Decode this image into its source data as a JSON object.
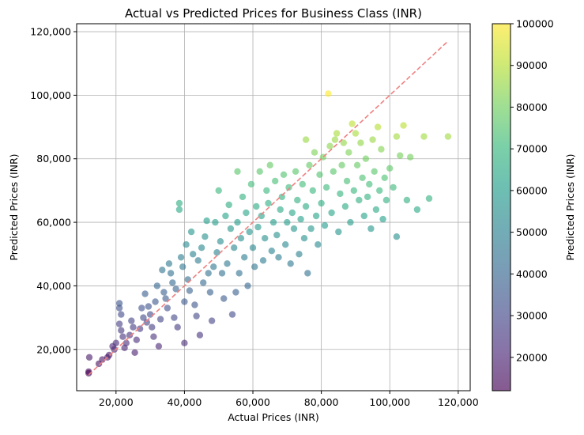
{
  "chart_data": {
    "type": "scatter",
    "title": "Actual vs Predicted Prices for Business Class (INR)",
    "xlabel": "Actual Prices (INR)",
    "ylabel": "Predicted Prices (INR)",
    "xlim": [
      8500,
      123500
    ],
    "ylim": [
      7000,
      122500
    ],
    "grid": true,
    "x_ticks": [
      20000,
      40000,
      60000,
      80000,
      100000,
      120000
    ],
    "x_tick_labels": [
      "20,000",
      "40,000",
      "60,000",
      "80,000",
      "100,000",
      "120,000"
    ],
    "y_ticks": [
      20000,
      40000,
      60000,
      80000,
      100000,
      120000
    ],
    "y_tick_labels": [
      "20,000",
      "40,000",
      "60,000",
      "80,000",
      "100,000",
      "120,000"
    ],
    "reference_line": {
      "from": [
        12000,
        12000
      ],
      "to": [
        117000,
        117000
      ],
      "color": "#f08080",
      "style": "dashed"
    },
    "colorbar": {
      "label": "Predicted Prices (INR)",
      "range": [
        12000,
        100000
      ],
      "ticks": [
        20000,
        30000,
        40000,
        50000,
        60000,
        70000,
        80000,
        90000,
        100000
      ],
      "tick_labels": [
        "20000",
        "30000",
        "40000",
        "50000",
        "60000",
        "70000",
        "80000",
        "90000",
        "100000"
      ],
      "colormap": "viridis",
      "colormap_stops": [
        "#440154",
        "#482878",
        "#3e4a89",
        "#31688e",
        "#26828e",
        "#1f9e89",
        "#35b779",
        "#6ece58",
        "#b5de2b",
        "#fde725"
      ]
    },
    "marker_alpha": 0.6,
    "series": [
      {
        "points": [
          [
            12000,
            12500
          ],
          [
            12000,
            13000
          ],
          [
            12200,
            17500
          ],
          [
            15000,
            15500
          ],
          [
            16000,
            16800
          ],
          [
            17500,
            17500
          ],
          [
            18000,
            18200
          ],
          [
            19000,
            21000
          ],
          [
            19500,
            20000
          ],
          [
            20000,
            22000
          ],
          [
            21000,
            34500
          ],
          [
            21000,
            33000
          ],
          [
            21500,
            31000
          ],
          [
            21000,
            28000
          ],
          [
            21500,
            26000
          ],
          [
            22000,
            24000
          ],
          [
            22500,
            20500
          ],
          [
            23000,
            22000
          ],
          [
            24000,
            24500
          ],
          [
            24500,
            29000
          ],
          [
            25000,
            27000
          ],
          [
            25500,
            19000
          ],
          [
            26000,
            23000
          ],
          [
            27000,
            26500
          ],
          [
            27500,
            33000
          ],
          [
            28000,
            30000
          ],
          [
            28500,
            37500
          ],
          [
            29000,
            28500
          ],
          [
            29500,
            33500
          ],
          [
            30000,
            31000
          ],
          [
            30500,
            27000
          ],
          [
            31000,
            24000
          ],
          [
            31500,
            35000
          ],
          [
            32000,
            40000
          ],
          [
            32500,
            21000
          ],
          [
            33000,
            29500
          ],
          [
            33500,
            45000
          ],
          [
            34000,
            38000
          ],
          [
            34500,
            36000
          ],
          [
            35000,
            33000
          ],
          [
            35500,
            47000
          ],
          [
            36000,
            44000
          ],
          [
            36500,
            41000
          ],
          [
            37000,
            30000
          ],
          [
            37500,
            39000
          ],
          [
            38000,
            27000
          ],
          [
            38500,
            64000
          ],
          [
            38500,
            66000
          ],
          [
            39000,
            49000
          ],
          [
            39500,
            46000
          ],
          [
            40000,
            22000
          ],
          [
            40000,
            35000
          ],
          [
            40500,
            53000
          ],
          [
            41000,
            42000
          ],
          [
            41500,
            38500
          ],
          [
            42000,
            57000
          ],
          [
            42500,
            50000
          ],
          [
            43000,
            34000
          ],
          [
            43500,
            30500
          ],
          [
            44000,
            48000
          ],
          [
            44500,
            24500
          ],
          [
            45000,
            52000
          ],
          [
            45500,
            41000
          ],
          [
            46000,
            55500
          ],
          [
            46500,
            60500
          ],
          [
            47000,
            44000
          ],
          [
            47500,
            38000
          ],
          [
            48000,
            29000
          ],
          [
            48500,
            46000
          ],
          [
            49000,
            60000
          ],
          [
            49500,
            50500
          ],
          [
            50000,
            70000
          ],
          [
            50500,
            54000
          ],
          [
            51000,
            44000
          ],
          [
            51500,
            36000
          ],
          [
            52000,
            62000
          ],
          [
            52500,
            47000
          ],
          [
            53000,
            65500
          ],
          [
            53500,
            58000
          ],
          [
            54000,
            31000
          ],
          [
            54500,
            52000
          ],
          [
            55000,
            38000
          ],
          [
            55500,
            76000
          ],
          [
            55500,
            60000
          ],
          [
            56000,
            44000
          ],
          [
            56500,
            55000
          ],
          [
            57000,
            68000
          ],
          [
            57500,
            49000
          ],
          [
            58000,
            63000
          ],
          [
            58500,
            40000
          ],
          [
            59000,
            57000
          ],
          [
            59500,
            72000
          ],
          [
            60000,
            52000
          ],
          [
            60500,
            46000
          ],
          [
            61000,
            65000
          ],
          [
            61500,
            58500
          ],
          [
            62000,
            76000
          ],
          [
            62500,
            62000
          ],
          [
            63000,
            48000
          ],
          [
            63500,
            55000
          ],
          [
            64000,
            70000
          ],
          [
            64500,
            66000
          ],
          [
            65000,
            78000
          ],
          [
            65500,
            51000
          ],
          [
            66000,
            60000
          ],
          [
            66500,
            73000
          ],
          [
            67000,
            56000
          ],
          [
            67500,
            49000
          ],
          [
            68000,
            64000
          ],
          [
            68500,
            68000
          ],
          [
            69000,
            75000
          ],
          [
            69500,
            53000
          ],
          [
            70000,
            60000
          ],
          [
            70500,
            71000
          ],
          [
            71000,
            47000
          ],
          [
            71500,
            63000
          ],
          [
            72000,
            58000
          ],
          [
            72500,
            76000
          ],
          [
            73000,
            67000
          ],
          [
            73500,
            50000
          ],
          [
            74000,
            61000
          ],
          [
            74500,
            72000
          ],
          [
            75000,
            55000
          ],
          [
            75500,
            86000
          ],
          [
            75500,
            65000
          ],
          [
            76000,
            44000
          ],
          [
            76500,
            78000
          ],
          [
            77000,
            58000
          ],
          [
            77500,
            70000
          ],
          [
            78000,
            82000
          ],
          [
            78500,
            62000
          ],
          [
            79000,
            53000
          ],
          [
            79500,
            75000
          ],
          [
            80000,
            66000
          ],
          [
            80500,
            80500
          ],
          [
            81000,
            59000
          ],
          [
            81500,
            71000
          ],
          [
            82000,
            100500
          ],
          [
            82500,
            84000
          ],
          [
            83000,
            63000
          ],
          [
            83500,
            76000
          ],
          [
            84000,
            86000
          ],
          [
            84500,
            88000
          ],
          [
            85000,
            57000
          ],
          [
            85500,
            69000
          ],
          [
            86000,
            78000
          ],
          [
            86500,
            85000
          ],
          [
            87000,
            65000
          ],
          [
            87500,
            73000
          ],
          [
            88000,
            82000
          ],
          [
            88500,
            60000
          ],
          [
            89000,
            91000
          ],
          [
            89500,
            70000
          ],
          [
            90000,
            88000
          ],
          [
            90500,
            78000
          ],
          [
            91000,
            67000
          ],
          [
            91500,
            85000
          ],
          [
            92000,
            74000
          ],
          [
            92500,
            62000
          ],
          [
            93000,
            80000
          ],
          [
            93500,
            68000
          ],
          [
            94000,
            72000
          ],
          [
            94500,
            58000
          ],
          [
            95000,
            86000
          ],
          [
            95500,
            76000
          ],
          [
            96000,
            64000
          ],
          [
            96500,
            90000
          ],
          [
            97000,
            70000
          ],
          [
            97500,
            83000
          ],
          [
            98000,
            61000
          ],
          [
            98500,
            74000
          ],
          [
            99000,
            67000
          ],
          [
            100000,
            77000
          ],
          [
            101000,
            71000
          ],
          [
            102000,
            55500
          ],
          [
            102000,
            87000
          ],
          [
            103000,
            81000
          ],
          [
            104000,
            90500
          ],
          [
            105000,
            67000
          ],
          [
            106000,
            80500
          ],
          [
            108000,
            64000
          ],
          [
            110000,
            87000
          ],
          [
            111500,
            67500
          ],
          [
            117000,
            87000
          ]
        ]
      }
    ]
  }
}
